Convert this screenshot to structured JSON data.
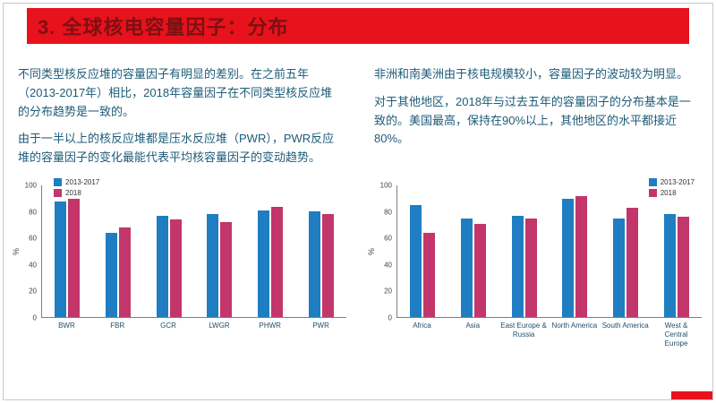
{
  "header": {
    "title": "3. 全球核电容量因子：分布",
    "bar_color": "#e8121c",
    "title_color": "#7d1012"
  },
  "left_text": {
    "paragraphs": [
      "不同类型核反应堆的容量因子有明显的差别。在之前五年（2013-2017年）相比，2018年容量因子在不同类型核反应堆的分布趋势是一致的。",
      "由于一半以上的核反应堆都是压水反应堆（PWR），PWR反应堆的容量因子的变化最能代表平均核容量因子的变动趋势。"
    ]
  },
  "right_text": {
    "paragraphs": [
      "非洲和南美洲由于核电规模较小，容量因子的波动较为明显。",
      "对于其他地区，2018年与过去五年的容量因子的分布基本是一致的。美国最高，保持在90%以上，其他地区的水平都接近80%。"
    ]
  },
  "chart_data": [
    {
      "type": "bar",
      "title": "",
      "xlabel": "",
      "ylabel": "%",
      "ylim": [
        0,
        100
      ],
      "yticks": [
        0,
        20,
        40,
        60,
        80,
        100
      ],
      "grid": false,
      "legend_position": "top-left",
      "categories": [
        "BWR",
        "FBR",
        "GCR",
        "LWGR",
        "PHWR",
        "PWR"
      ],
      "series": [
        {
          "name": "2013-2017",
          "color": "#1f7ec2",
          "values": [
            88,
            64,
            77,
            78,
            81,
            80
          ]
        },
        {
          "name": "2018",
          "color": "#c2366b",
          "values": [
            90,
            68,
            74,
            72,
            84,
            78
          ]
        }
      ]
    },
    {
      "type": "bar",
      "title": "",
      "xlabel": "",
      "ylabel": "%",
      "ylim": [
        0,
        100
      ],
      "yticks": [
        0,
        20,
        40,
        60,
        80,
        100
      ],
      "grid": false,
      "legend_position": "top-right",
      "categories": [
        "Africa",
        "Asia",
        "East Europe & Russia",
        "North America",
        "South America",
        "West & Central Europe"
      ],
      "series": [
        {
          "name": "2013-2017",
          "color": "#1f7ec2",
          "values": [
            85,
            75,
            77,
            90,
            75,
            78
          ]
        },
        {
          "name": "2018",
          "color": "#c2366b",
          "values": [
            64,
            71,
            75,
            92,
            83,
            76
          ]
        }
      ]
    }
  ]
}
